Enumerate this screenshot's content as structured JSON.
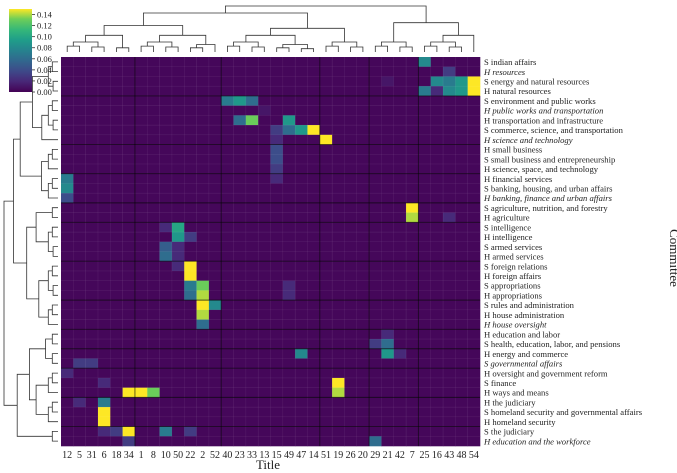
{
  "chart_data": {
    "type": "heatmap",
    "title": "",
    "xlabel": "Title",
    "ylabel": "Committee",
    "x_categories": [
      "12",
      "5",
      "31",
      "6",
      "18",
      "34",
      "1",
      "8",
      "10",
      "50",
      "22",
      "2",
      "52",
      "40",
      "23",
      "33",
      "13",
      "15",
      "49",
      "47",
      "14",
      "51",
      "19",
      "26",
      "20",
      "29",
      "21",
      "42",
      "7",
      "25",
      "16",
      "43",
      "48",
      "54"
    ],
    "y_categories": [
      {
        "label": "S indian affairs",
        "italic": false
      },
      {
        "label": "H resources",
        "italic": true
      },
      {
        "label": "S energy and natural resources",
        "italic": false
      },
      {
        "label": "H natural resources",
        "italic": false
      },
      {
        "label": "S environment and public works",
        "italic": false
      },
      {
        "label": "H public works and transportation",
        "italic": true
      },
      {
        "label": "H transportation and infrastructure",
        "italic": false
      },
      {
        "label": "S commerce, science, and transportation",
        "italic": false
      },
      {
        "label": "H science and technology",
        "italic": true
      },
      {
        "label": "H small business",
        "italic": false
      },
      {
        "label": "S small business and entrepreneurship",
        "italic": false
      },
      {
        "label": "H science, space, and technology",
        "italic": false
      },
      {
        "label": "H financial services",
        "italic": false
      },
      {
        "label": "S banking, housing, and urban affairs",
        "italic": false
      },
      {
        "label": "H banking, finance and urban affairs",
        "italic": true
      },
      {
        "label": "S agriculture, nutrition, and forestry",
        "italic": false
      },
      {
        "label": "H agriculture",
        "italic": false
      },
      {
        "label": "S intelligence",
        "italic": false
      },
      {
        "label": "H intelligence",
        "italic": false
      },
      {
        "label": "S armed services",
        "italic": false
      },
      {
        "label": "H armed services",
        "italic": false
      },
      {
        "label": "S foreign relations",
        "italic": false
      },
      {
        "label": "H foreign affairs",
        "italic": false
      },
      {
        "label": "S appropriations",
        "italic": false
      },
      {
        "label": "H appropriations",
        "italic": false
      },
      {
        "label": "S rules and administration",
        "italic": false
      },
      {
        "label": "H house administration",
        "italic": false
      },
      {
        "label": "H house oversight",
        "italic": true
      },
      {
        "label": "H education and labor",
        "italic": false
      },
      {
        "label": "S health, education, labor, and pensions",
        "italic": false
      },
      {
        "label": "H energy and commerce",
        "italic": false
      },
      {
        "label": "S governmental affairs",
        "italic": true
      },
      {
        "label": "H oversight and government reform",
        "italic": false
      },
      {
        "label": "S finance",
        "italic": false
      },
      {
        "label": "H ways and means",
        "italic": false
      },
      {
        "label": "H the judiciary",
        "italic": false
      },
      {
        "label": "S homeland security and governmental affairs",
        "italic": false
      },
      {
        "label": "H homeland security",
        "italic": false
      },
      {
        "label": "S the judiciary",
        "italic": false
      },
      {
        "label": "H education and the workforce",
        "italic": true
      }
    ],
    "colorbar": {
      "vmin": 0.0,
      "vmax": 0.15,
      "ticks": [
        "0.14",
        "0.12",
        "0.10",
        "0.08",
        "0.06",
        "0.04",
        "0.02",
        "0.00"
      ],
      "tick_values": [
        0.14,
        0.12,
        0.1,
        0.08,
        0.06,
        0.04,
        0.02,
        0.0
      ],
      "colormap": "viridis"
    },
    "base_value": 0.003,
    "cells": [
      {
        "row": 0,
        "col": 29,
        "v": 0.08
      },
      {
        "row": 1,
        "col": 31,
        "v": 0.03
      },
      {
        "row": 2,
        "col": 26,
        "v": 0.01
      },
      {
        "row": 2,
        "col": 30,
        "v": 0.08
      },
      {
        "row": 2,
        "col": 31,
        "v": 0.07
      },
      {
        "row": 2,
        "col": 32,
        "v": 0.09
      },
      {
        "row": 2,
        "col": 33,
        "v": 0.15
      },
      {
        "row": 3,
        "col": 29,
        "v": 0.07
      },
      {
        "row": 3,
        "col": 30,
        "v": 0.02
      },
      {
        "row": 3,
        "col": 31,
        "v": 0.08
      },
      {
        "row": 3,
        "col": 32,
        "v": 0.09
      },
      {
        "row": 3,
        "col": 33,
        "v": 0.15
      },
      {
        "row": 4,
        "col": 13,
        "v": 0.07
      },
      {
        "row": 4,
        "col": 14,
        "v": 0.09
      },
      {
        "row": 4,
        "col": 15,
        "v": 0.06
      },
      {
        "row": 5,
        "col": 16,
        "v": 0.01
      },
      {
        "row": 6,
        "col": 15,
        "v": 0.13
      },
      {
        "row": 6,
        "col": 14,
        "v": 0.06
      },
      {
        "row": 6,
        "col": 18,
        "v": 0.09
      },
      {
        "row": 7,
        "col": 17,
        "v": 0.03
      },
      {
        "row": 7,
        "col": 18,
        "v": 0.06
      },
      {
        "row": 7,
        "col": 19,
        "v": 0.09
      },
      {
        "row": 7,
        "col": 20,
        "v": 0.15
      },
      {
        "row": 8,
        "col": 21,
        "v": 0.15
      },
      {
        "row": 8,
        "col": 17,
        "v": 0.02
      },
      {
        "row": 9,
        "col": 17,
        "v": 0.04
      },
      {
        "row": 10,
        "col": 17,
        "v": 0.04
      },
      {
        "row": 11,
        "col": 17,
        "v": 0.03
      },
      {
        "row": 12,
        "col": 17,
        "v": 0.02
      },
      {
        "row": 12,
        "col": 0,
        "v": 0.07
      },
      {
        "row": 13,
        "col": 0,
        "v": 0.08
      },
      {
        "row": 14,
        "col": 0,
        "v": 0.04
      },
      {
        "row": 15,
        "col": 28,
        "v": 0.15
      },
      {
        "row": 16,
        "col": 28,
        "v": 0.14
      },
      {
        "row": 16,
        "col": 31,
        "v": 0.02
      },
      {
        "row": 17,
        "col": 9,
        "v": 0.1
      },
      {
        "row": 17,
        "col": 8,
        "v": 0.02
      },
      {
        "row": 18,
        "col": 9,
        "v": 0.09
      },
      {
        "row": 18,
        "col": 10,
        "v": 0.03
      },
      {
        "row": 19,
        "col": 8,
        "v": 0.05
      },
      {
        "row": 19,
        "col": 9,
        "v": 0.02
      },
      {
        "row": 20,
        "col": 8,
        "v": 0.06
      },
      {
        "row": 20,
        "col": 9,
        "v": 0.02
      },
      {
        "row": 21,
        "col": 10,
        "v": 0.15
      },
      {
        "row": 21,
        "col": 9,
        "v": 0.02
      },
      {
        "row": 22,
        "col": 10,
        "v": 0.15
      },
      {
        "row": 23,
        "col": 10,
        "v": 0.07
      },
      {
        "row": 23,
        "col": 11,
        "v": 0.13
      },
      {
        "row": 23,
        "col": 18,
        "v": 0.02
      },
      {
        "row": 24,
        "col": 10,
        "v": 0.06
      },
      {
        "row": 24,
        "col": 11,
        "v": 0.14
      },
      {
        "row": 24,
        "col": 18,
        "v": 0.02
      },
      {
        "row": 25,
        "col": 11,
        "v": 0.15
      },
      {
        "row": 25,
        "col": 12,
        "v": 0.08
      },
      {
        "row": 26,
        "col": 11,
        "v": 0.14
      },
      {
        "row": 27,
        "col": 11,
        "v": 0.06
      },
      {
        "row": 28,
        "col": 26,
        "v": 0.02
      },
      {
        "row": 29,
        "col": 25,
        "v": 0.03
      },
      {
        "row": 29,
        "col": 26,
        "v": 0.06
      },
      {
        "row": 30,
        "col": 19,
        "v": 0.08
      },
      {
        "row": 30,
        "col": 26,
        "v": 0.09
      },
      {
        "row": 30,
        "col": 27,
        "v": 0.02
      },
      {
        "row": 31,
        "col": 1,
        "v": 0.03
      },
      {
        "row": 31,
        "col": 2,
        "v": 0.03
      },
      {
        "row": 32,
        "col": 0,
        "v": 0.02
      },
      {
        "row": 33,
        "col": 22,
        "v": 0.15
      },
      {
        "row": 33,
        "col": 3,
        "v": 0.02
      },
      {
        "row": 34,
        "col": 5,
        "v": 0.15
      },
      {
        "row": 34,
        "col": 6,
        "v": 0.15
      },
      {
        "row": 34,
        "col": 7,
        "v": 0.13
      },
      {
        "row": 34,
        "col": 22,
        "v": 0.14
      },
      {
        "row": 35,
        "col": 3,
        "v": 0.07
      },
      {
        "row": 35,
        "col": 1,
        "v": 0.02
      },
      {
        "row": 36,
        "col": 3,
        "v": 0.15
      },
      {
        "row": 37,
        "col": 3,
        "v": 0.15
      },
      {
        "row": 38,
        "col": 3,
        "v": 0.02
      },
      {
        "row": 38,
        "col": 4,
        "v": 0.03
      },
      {
        "row": 38,
        "col": 5,
        "v": 0.15
      },
      {
        "row": 38,
        "col": 8,
        "v": 0.07
      },
      {
        "row": 38,
        "col": 10,
        "v": 0.03
      },
      {
        "row": 39,
        "col": 5,
        "v": 0.03
      },
      {
        "row": 39,
        "col": 25,
        "v": 0.06
      }
    ],
    "row_group_separators_after": [
      3,
      8,
      11,
      14,
      16,
      20,
      24,
      27,
      29,
      31,
      34,
      37
    ],
    "col_group_separators_after": [
      5,
      12,
      20,
      24,
      28
    ]
  }
}
